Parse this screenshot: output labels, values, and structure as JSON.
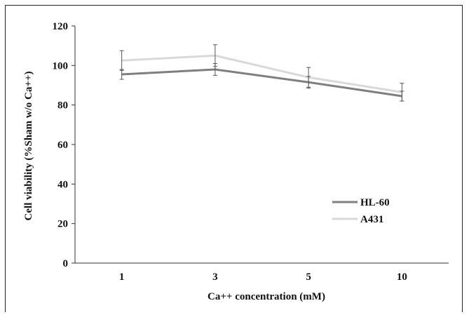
{
  "chart_data": {
    "type": "line",
    "categories": [
      "1",
      "3",
      "5",
      "10"
    ],
    "yticks": [
      "0",
      "20",
      "40",
      "60",
      "80",
      "100",
      "120"
    ],
    "ylim": [
      0,
      120
    ],
    "xlabel": "Ca++ concentration (mM)",
    "ylabel": "Cell viability (%Sham w/o Ca++)",
    "legend_position": "right-middle",
    "grid": false,
    "series": [
      {
        "name": "HL-60",
        "color": "#7f7f7f",
        "values": [
          95.5,
          98,
          91.5,
          84.5
        ],
        "errors": [
          2.5,
          3,
          3,
          2.5
        ]
      },
      {
        "name": "A431",
        "color": "#d9d9d9",
        "values": [
          102.5,
          105,
          94,
          86.5
        ],
        "errors": [
          5,
          5.5,
          5,
          4.5
        ]
      }
    ]
  }
}
